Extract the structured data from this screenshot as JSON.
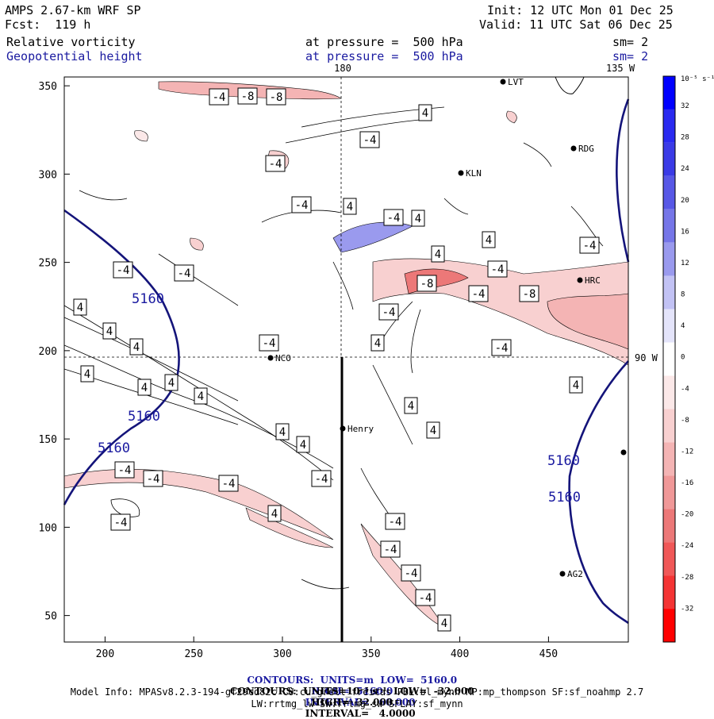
{
  "header": {
    "title": "AMPS 2.67-km WRF SP",
    "forecast": "Fcst:  119 h",
    "init": "Init: 12 UTC Mon 01 Dec 25",
    "valid": "Valid: 11 UTC Sat 06 Dec 25",
    "field1_name": "Relative vorticity",
    "field1_level": "at pressure =  500 hPa",
    "field1_smooth": "sm= 2",
    "field2_name": "Geopotential height",
    "field2_level": "at pressure =  500 hPa",
    "field2_smooth": "sm= 2"
  },
  "map": {
    "top_labels": [
      "180",
      "135 W"
    ],
    "right_label": "90 W",
    "x_ticks": [
      "200",
      "250",
      "300",
      "350",
      "400",
      "450"
    ],
    "y_ticks": [
      "350",
      "300",
      "250",
      "200",
      "150",
      "100",
      "50"
    ],
    "stations": [
      {
        "name": "LVT"
      },
      {
        "name": "RDG"
      },
      {
        "name": "KLN"
      },
      {
        "name": "HRC"
      },
      {
        "name": "NCO"
      },
      {
        "name": "Henry"
      },
      {
        "name": "AG2"
      },
      {
        "name": ""
      }
    ],
    "height_labels": [
      "5160",
      "5160",
      "5160",
      "5160",
      "5160"
    ],
    "vort_labels": [
      "-4",
      "-8",
      "-8",
      "4",
      "-4",
      "-4",
      "-4",
      "4",
      "-4",
      "4",
      "4",
      "-4",
      "4",
      "-4",
      "-4",
      "-4",
      "-8",
      "-4",
      "-8",
      "-4",
      "4",
      "-4",
      "4",
      "4",
      "4",
      "4",
      "4",
      "4",
      "4",
      "-4",
      "4",
      "4",
      "4",
      "4",
      "4",
      "-4",
      "-4",
      "-4",
      "-4",
      "4",
      "-4",
      "-4",
      "-4",
      "-4",
      "-4",
      "4"
    ]
  },
  "colorbar": {
    "unit": "10⁻⁵ s⁻¹",
    "labels": [
      "32",
      "28",
      "24",
      "20",
      "16",
      "12",
      "8",
      "4",
      "0",
      "-4",
      "-8",
      "-12",
      "-16",
      "-20",
      "-24",
      "-28",
      "-32"
    ],
    "colors": [
      "#0000ff",
      "#2a2af0",
      "#3b3be6",
      "#5858e6",
      "#7676e8",
      "#9a9aee",
      "#c2c2f4",
      "#e4e4fa",
      "#ffffff",
      "#fbe8e8",
      "#f8d0d0",
      "#f4b4b4",
      "#f09898",
      "#ec7878",
      "#f05858",
      "#f43434",
      "#ff0000"
    ]
  },
  "footer": {
    "line1_a": "CONTOURS:  UNITS=m  LOW=  5160.0",
    "line1_b": "HIGH=  5160.0",
    "line1_c": "INTERVAL=   60.000",
    "line2_a": "CONTOURS:  UNITS=10⁻⁵ s⁻¹  LOW=  -32.000",
    "line2_b": "HIGH=  32.000",
    "line2_c": "INTERVAL=   4.0000",
    "model_info": "Model Info: MPASv8.2.3-194-gf29cd82c CU:cu_grell_freitas PBL:bl_mynn MP:mp_thompson SF:sf_noahmp 2.7",
    "model_info2": "LW:rrtmg_lw SW:rrtmg_sw SFLAY:sf_mynn"
  }
}
